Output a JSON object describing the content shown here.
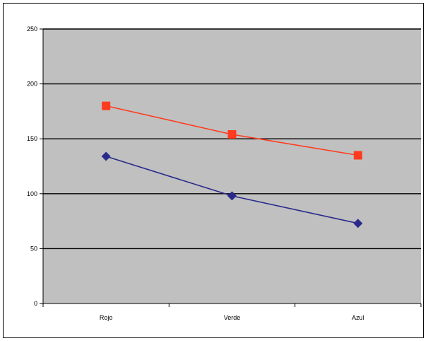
{
  "chart_data": {
    "type": "line",
    "title": "",
    "xlabel": "",
    "ylabel": "",
    "categories": [
      "Rojo",
      "Verde",
      "Azul"
    ],
    "ylim": [
      0,
      250
    ],
    "yticks": [
      0,
      50,
      100,
      150,
      200,
      250
    ],
    "grid": true,
    "legend": "none",
    "plot_background": "#c0c0c0",
    "series": [
      {
        "values": [
          180,
          154,
          135
        ],
        "color": "#ff3b1f",
        "marker": "square"
      },
      {
        "values": [
          134,
          98,
          73
        ],
        "color": "#2a2a8c",
        "marker": "diamond"
      }
    ]
  }
}
